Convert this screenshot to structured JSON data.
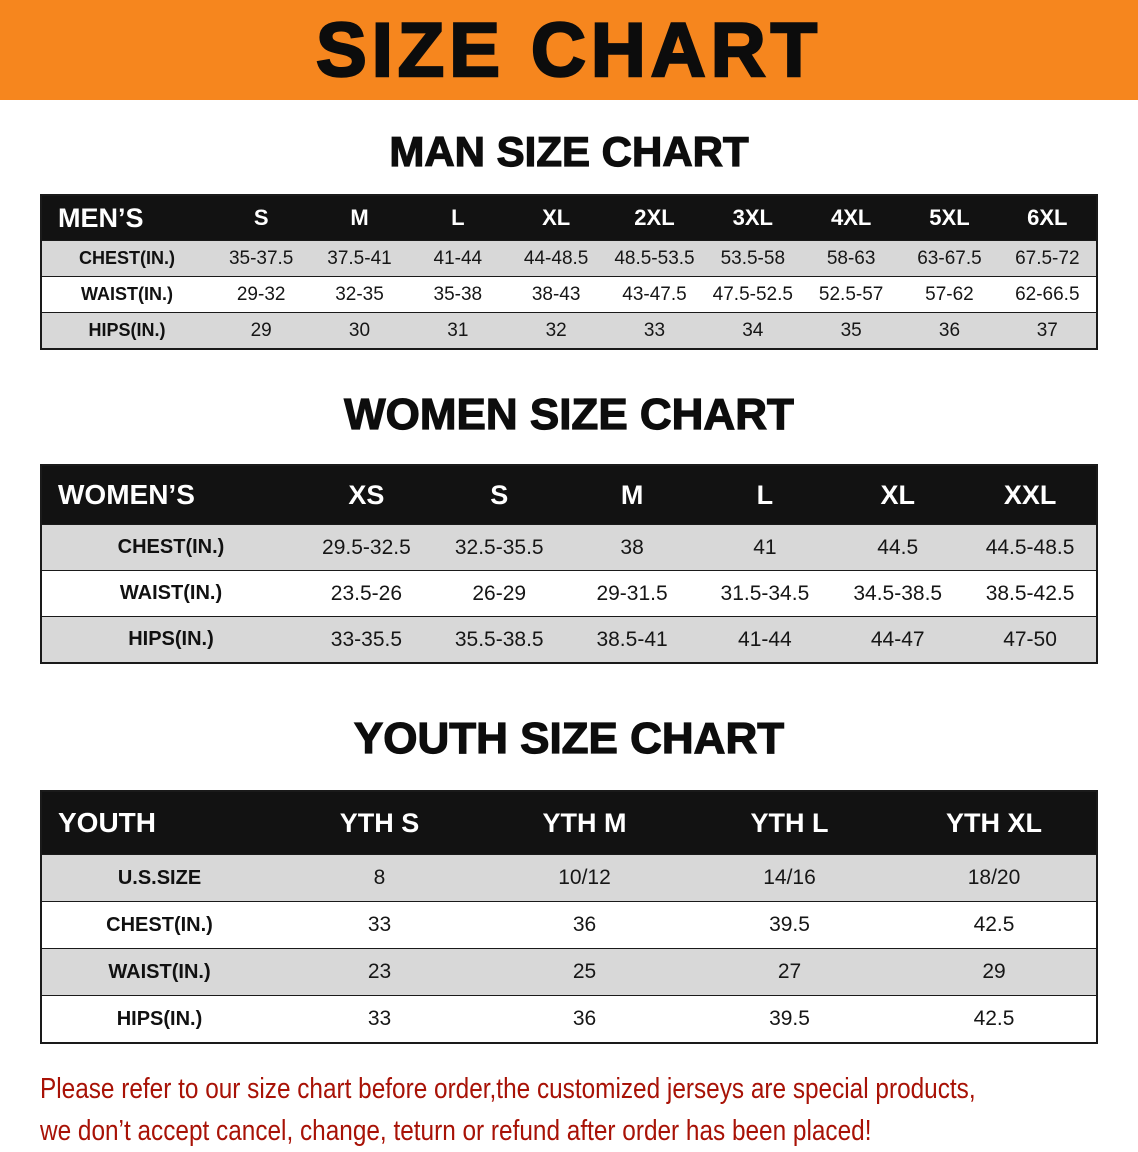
{
  "banner": {
    "title": "SIZE CHART"
  },
  "colors": {
    "banner_bg": "#f6861e",
    "header_bg": "#121212",
    "stripe": "#d8d8d8",
    "disclaimer_red": "#a81206"
  },
  "sections": [
    {
      "id": "men",
      "heading": "MAN SIZE CHART",
      "table": {
        "header": [
          "MEN’S",
          "S",
          "M",
          "L",
          "XL",
          "2XL",
          "3XL",
          "4XL",
          "5XL",
          "6XL"
        ],
        "rows": [
          [
            "CHEST(IN.)",
            "35-37.5",
            "37.5-41",
            "41-44",
            "44-48.5",
            "48.5-53.5",
            "53.5-58",
            "58-63",
            "63-67.5",
            "67.5-72"
          ],
          [
            "WAIST(IN.)",
            "29-32",
            "32-35",
            "35-38",
            "38-43",
            "43-47.5",
            "47.5-52.5",
            "52.5-57",
            "57-62",
            "62-66.5"
          ],
          [
            "HIPS(IN.)",
            "29",
            "30",
            "31",
            "32",
            "33",
            "34",
            "35",
            "36",
            "37"
          ]
        ]
      }
    },
    {
      "id": "women",
      "heading": "WOMEN SIZE CHART",
      "table": {
        "header": [
          "WOMEN’S",
          "XS",
          "S",
          "M",
          "L",
          "XL",
          "XXL"
        ],
        "rows": [
          [
            "CHEST(IN.)",
            "29.5-32.5",
            "32.5-35.5",
            "38",
            "41",
            "44.5",
            "44.5-48.5"
          ],
          [
            "WAIST(IN.)",
            "23.5-26",
            "26-29",
            "29-31.5",
            "31.5-34.5",
            "34.5-38.5",
            "38.5-42.5"
          ],
          [
            "HIPS(IN.)",
            "33-35.5",
            "35.5-38.5",
            "38.5-41",
            "41-44",
            "44-47",
            "47-50"
          ]
        ]
      }
    },
    {
      "id": "youth",
      "heading": "YOUTH SIZE CHART",
      "table": {
        "header": [
          "YOUTH",
          "YTH S",
          "YTH M",
          "YTH L",
          "YTH XL"
        ],
        "rows": [
          [
            "U.S.SIZE",
            "8",
            "10/12",
            "14/16",
            "18/20"
          ],
          [
            "CHEST(IN.)",
            "33",
            "36",
            "39.5",
            "42.5"
          ],
          [
            "WAIST(IN.)",
            "23",
            "25",
            "27",
            "29"
          ],
          [
            "HIPS(IN.)",
            "33",
            "36",
            "39.5",
            "42.5"
          ]
        ]
      }
    }
  ],
  "disclaimer": {
    "line1": "Please refer to our size chart before order,the customized jerseys are special products,",
    "line2": "we don’t accept cancel, change, teturn or refund after order has been placed!"
  }
}
